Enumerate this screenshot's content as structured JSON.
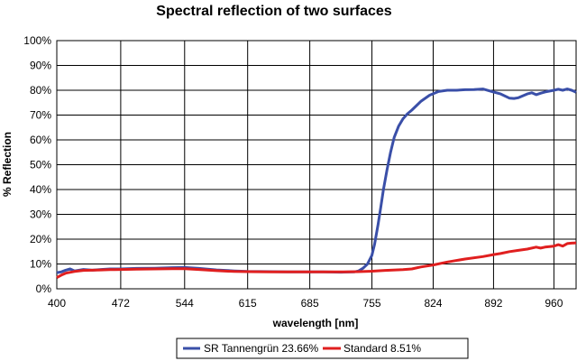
{
  "chart_data": {
    "type": "line",
    "title": "Spectral reflection of two surfaces",
    "xlabel": "wavelength  [nm]",
    "ylabel": "% Reflection",
    "xlim": [
      400,
      985
    ],
    "ylim": [
      0,
      100
    ],
    "x_ticks": [
      400,
      472,
      544,
      615,
      685,
      755,
      824,
      892,
      960
    ],
    "x_tick_labels": [
      "400",
      "472",
      "544",
      "615",
      "685",
      "755",
      "824",
      "892",
      "960"
    ],
    "y_ticks": [
      0,
      10,
      20,
      30,
      40,
      50,
      60,
      70,
      80,
      90,
      100
    ],
    "y_tick_labels": [
      "0%",
      "10%",
      "20%",
      "30%",
      "40%",
      "50%",
      "60%",
      "70%",
      "80%",
      "90%",
      "100%"
    ],
    "grid": true,
    "legend_position": "bottom",
    "series": [
      {
        "name": "SR Tannengrün 23.66%",
        "color": "#3a4fa8",
        "x": [
          400,
          405,
          410,
          415,
          420,
          430,
          440,
          450,
          460,
          472,
          490,
          510,
          530,
          544,
          560,
          580,
          600,
          615,
          640,
          660,
          685,
          700,
          720,
          735,
          740,
          745,
          750,
          755,
          758,
          762,
          765,
          768,
          772,
          776,
          780,
          785,
          790,
          795,
          800,
          810,
          820,
          830,
          840,
          850,
          860,
          870,
          880,
          890,
          900,
          910,
          915,
          920,
          930,
          935,
          940,
          945,
          950,
          960,
          965,
          970,
          975,
          980,
          985
        ],
        "y": [
          6.5,
          6.8,
          7.5,
          8.0,
          7.2,
          7.8,
          7.5,
          7.8,
          8.0,
          8.0,
          8.2,
          8.3,
          8.5,
          8.6,
          8.2,
          7.6,
          7.2,
          7.0,
          6.9,
          6.8,
          6.8,
          6.8,
          6.7,
          6.8,
          7.2,
          8.3,
          10.0,
          13.5,
          18.0,
          26.0,
          33.0,
          40.0,
          48.0,
          55.0,
          61.0,
          65.5,
          68.5,
          70.5,
          72.0,
          75.5,
          78.0,
          79.5,
          80.0,
          80.0,
          80.2,
          80.3,
          80.5,
          79.5,
          78.5,
          76.8,
          76.7,
          77.0,
          78.5,
          79.0,
          78.2,
          78.8,
          79.3,
          80.0,
          80.4,
          80.0,
          80.5,
          80.0,
          79.2
        ]
      },
      {
        "name": "Standard 8.51%",
        "color": "#e01f1f",
        "x": [
          400,
          405,
          410,
          420,
          430,
          440,
          450,
          460,
          472,
          490,
          510,
          530,
          544,
          560,
          580,
          600,
          615,
          640,
          660,
          685,
          700,
          720,
          740,
          755,
          770,
          790,
          800,
          810,
          824,
          840,
          860,
          880,
          892,
          900,
          910,
          920,
          930,
          940,
          945,
          950,
          960,
          965,
          970,
          975,
          980,
          985
        ],
        "y": [
          4.5,
          5.5,
          6.3,
          7.0,
          7.4,
          7.5,
          7.6,
          7.7,
          7.8,
          7.9,
          8.0,
          8.1,
          8.1,
          7.8,
          7.3,
          7.0,
          6.9,
          6.8,
          6.8,
          6.8,
          6.8,
          6.8,
          6.9,
          7.1,
          7.4,
          7.7,
          8.0,
          8.8,
          9.6,
          10.8,
          12.0,
          13.0,
          13.8,
          14.2,
          15.0,
          15.5,
          16.0,
          16.8,
          16.4,
          16.8,
          17.2,
          17.8,
          17.2,
          18.2,
          18.4,
          18.5
        ]
      }
    ]
  }
}
